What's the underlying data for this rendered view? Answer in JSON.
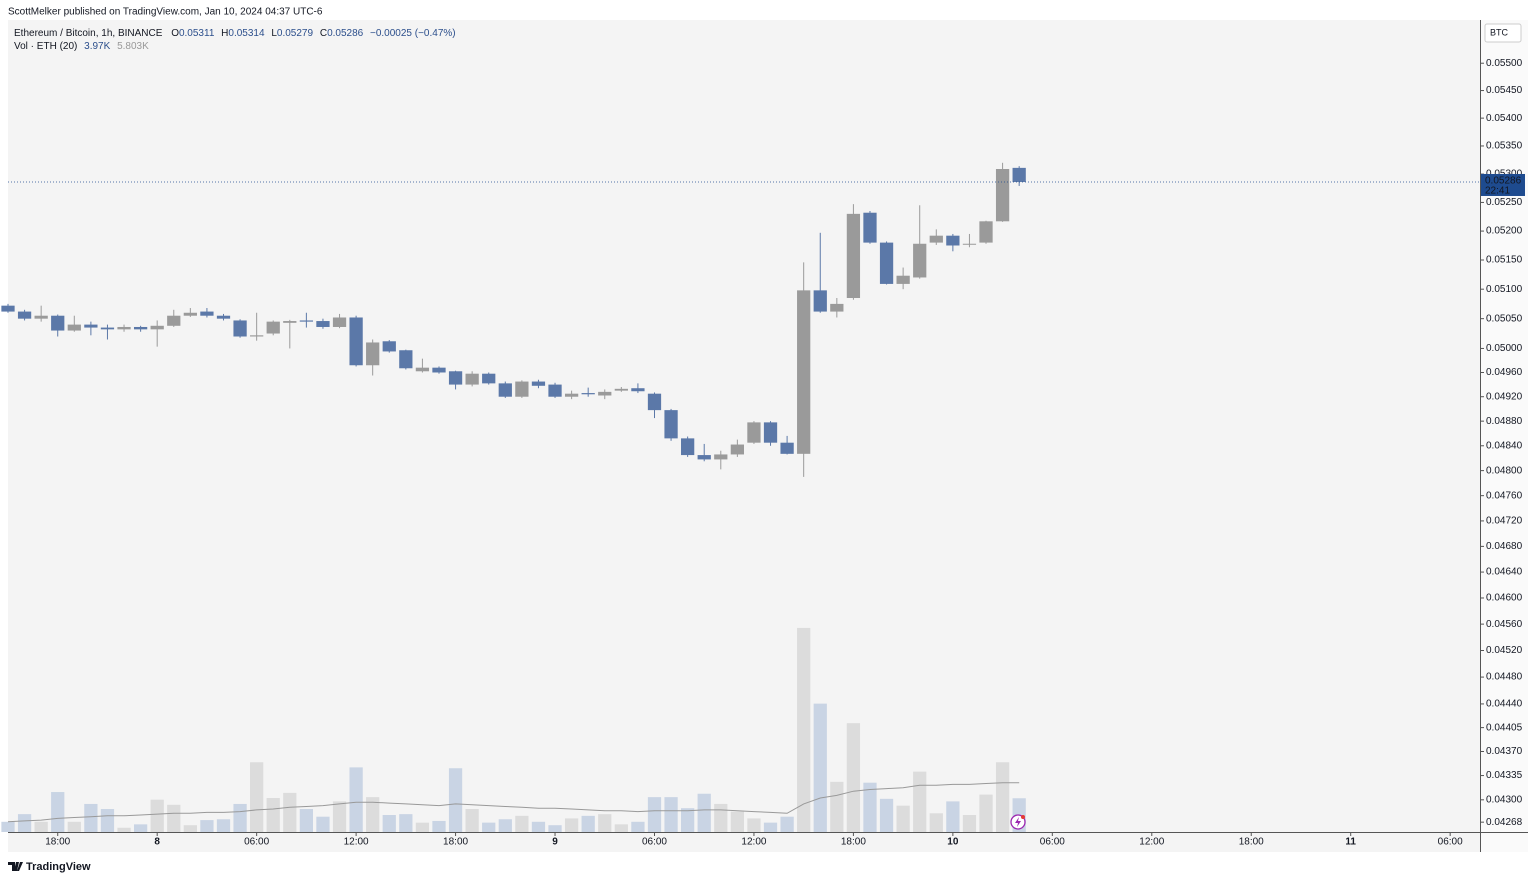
{
  "header": {
    "text": "ScottMelker published on TradingView.com, Jan 10, 2024 04:37 UTC-6"
  },
  "footer": {
    "brand": "TradingView"
  },
  "chart_data": {
    "type": "candlestick",
    "title": "Ethereum / Bitcoin, 1h, BINANCE",
    "currency": "BTC",
    "legend": {
      "o": "O",
      "h": "H",
      "l": "L",
      "c": "C",
      "change": "−0.00025 (−0.47%)"
    },
    "volume_legend": {
      "title": "Vol · ETH (20)",
      "value_label": "3.97K",
      "ma_label": "5.803K"
    },
    "countdown": "22:41",
    "up_color": "#9a9a9a",
    "down_color": "#5b78a8",
    "volume_up_color": "#dcdcdc",
    "volume_down_color": "#c9d4e4",
    "volume_ma_color": "#999999",
    "open": [
      0.05072,
      0.05062,
      0.0505,
      0.05055,
      0.0503,
      0.0504,
      0.05035,
      0.05032,
      0.05036,
      0.05032,
      0.05038,
      0.05055,
      0.05062,
      0.05055,
      0.05047,
      0.0502,
      0.05025,
      0.05043,
      0.05047,
      0.05046,
      0.05036,
      0.05052,
      0.04972,
      0.05012,
      0.04997,
      0.04962,
      0.04968,
      0.04962,
      0.0494,
      0.04958,
      0.04942,
      0.0492,
      0.04945,
      0.0494,
      0.0492,
      0.04926,
      0.04922,
      0.0493,
      0.04934,
      0.04925,
      0.04898,
      0.04852,
      0.04825,
      0.04818,
      0.04826,
      0.04845,
      0.04878,
      0.04845,
      0.04827,
      0.05098,
      0.05062,
      0.05085,
      0.05232,
      0.0518,
      0.05109,
      0.0512,
      0.0518,
      0.05192,
      0.05177,
      0.0518,
      0.05217,
      0.05311
    ],
    "high": [
      0.05075,
      0.05065,
      0.05072,
      0.05057,
      0.05055,
      0.05045,
      0.0504,
      0.0504,
      0.05038,
      0.05047,
      0.05065,
      0.05068,
      0.05068,
      0.05058,
      0.05049,
      0.0506,
      0.05047,
      0.05048,
      0.0506,
      0.0505,
      0.05058,
      0.05055,
      0.05015,
      0.05014,
      0.04998,
      0.04983,
      0.0497,
      0.04963,
      0.04962,
      0.0496,
      0.04945,
      0.04947,
      0.04948,
      0.04943,
      0.0493,
      0.04935,
      0.04932,
      0.04936,
      0.04942,
      0.04927,
      0.049,
      0.04855,
      0.04843,
      0.04832,
      0.0485,
      0.0488,
      0.0488,
      0.04856,
      0.05146,
      0.05197,
      0.05085,
      0.05247,
      0.05235,
      0.05182,
      0.05137,
      0.05245,
      0.05203,
      0.05195,
      0.05195,
      0.05218,
      0.0532,
      0.05314
    ],
    "low": [
      0.0506,
      0.05047,
      0.05045,
      0.0502,
      0.05028,
      0.05022,
      0.05015,
      0.05028,
      0.05028,
      0.05003,
      0.05036,
      0.05053,
      0.05052,
      0.05047,
      0.05018,
      0.05013,
      0.05022,
      0.05,
      0.05035,
      0.05033,
      0.05034,
      0.0497,
      0.04955,
      0.04993,
      0.04965,
      0.0496,
      0.04958,
      0.04932,
      0.04937,
      0.0494,
      0.04918,
      0.04918,
      0.04934,
      0.04918,
      0.04916,
      0.0492,
      0.04916,
      0.04928,
      0.04926,
      0.04885,
      0.04848,
      0.04822,
      0.04815,
      0.04802,
      0.04822,
      0.04843,
      0.0484,
      0.04826,
      0.0479,
      0.0506,
      0.05052,
      0.05082,
      0.05178,
      0.05108,
      0.051,
      0.05118,
      0.05176,
      0.05165,
      0.05172,
      0.05178,
      0.05216,
      0.05279
    ],
    "close": [
      0.05062,
      0.0505,
      0.05055,
      0.0503,
      0.0504,
      0.05035,
      0.05032,
      0.05036,
      0.05032,
      0.05038,
      0.05055,
      0.0506,
      0.05055,
      0.0505,
      0.0502,
      0.05022,
      0.05045,
      0.05046,
      0.05045,
      0.05036,
      0.05052,
      0.04972,
      0.0501,
      0.04995,
      0.04967,
      0.04968,
      0.0496,
      0.0494,
      0.04958,
      0.04942,
      0.0492,
      0.04945,
      0.04938,
      0.0492,
      0.04925,
      0.04924,
      0.04928,
      0.04933,
      0.04929,
      0.04898,
      0.04852,
      0.04825,
      0.04818,
      0.04826,
      0.04842,
      0.04878,
      0.04845,
      0.04827,
      0.05098,
      0.05062,
      0.05075,
      0.0523,
      0.0518,
      0.05109,
      0.05123,
      0.05178,
      0.05192,
      0.05175,
      0.05178,
      0.05217,
      0.05309,
      0.05286
    ],
    "volume": [
      1200,
      2100,
      1200,
      4700,
      1200,
      3300,
      2700,
      500,
      900,
      3800,
      3200,
      800,
      1400,
      1500,
      3300,
      8200,
      4000,
      4600,
      2700,
      1800,
      3600,
      7600,
      4100,
      2000,
      2100,
      1100,
      1300,
      7500,
      2700,
      1100,
      1500,
      1900,
      1200,
      800,
      1600,
      1900,
      2100,
      900,
      1200,
      4100,
      4100,
      2800,
      4500,
      3300,
      2400,
      1600,
      1100,
      1800,
      24000,
      15100,
      5900,
      12800,
      5800,
      3900,
      3100,
      7100,
      2200,
      3600,
      2000,
      4400,
      8200,
      3970
    ],
    "volume_ma": [
      1200,
      1300,
      1400,
      1600,
      1700,
      1800,
      1900,
      1900,
      2000,
      2100,
      2200,
      2200,
      2300,
      2300,
      2400,
      2600,
      2700,
      2900,
      3000,
      3100,
      3300,
      3500,
      3500,
      3400,
      3300,
      3200,
      3100,
      3300,
      3200,
      3100,
      3000,
      2900,
      2800,
      2800,
      2700,
      2600,
      2500,
      2500,
      2400,
      2500,
      2500,
      2500,
      2600,
      2600,
      2500,
      2400,
      2300,
      2200,
      3300,
      4000,
      4300,
      4800,
      5000,
      5100,
      5200,
      5500,
      5500,
      5600,
      5600,
      5700,
      5800,
      5803
    ],
    "volume_ylim": [
      0,
      95500
    ],
    "log_scale": true,
    "grid": false,
    "ylim": [
      0.04254,
      0.0558
    ],
    "yticks": [
      {
        "value": 0.055,
        "label": "0.05500"
      },
      {
        "value": 0.0545,
        "label": "0.05450"
      },
      {
        "value": 0.054,
        "label": "0.05400"
      },
      {
        "value": 0.0535,
        "label": "0.05350"
      },
      {
        "value": 0.053,
        "label": "0.05300"
      },
      {
        "value": 0.0525,
        "label": "0.05250"
      },
      {
        "value": 0.052,
        "label": "0.05200"
      },
      {
        "value": 0.0515,
        "label": "0.05150"
      },
      {
        "value": 0.051,
        "label": "0.05100"
      },
      {
        "value": 0.0505,
        "label": "0.05050"
      },
      {
        "value": 0.05,
        "label": "0.05000"
      },
      {
        "value": 0.0496,
        "label": "0.04960"
      },
      {
        "value": 0.0492,
        "label": "0.04920"
      },
      {
        "value": 0.0488,
        "label": "0.04880"
      },
      {
        "value": 0.0484,
        "label": "0.04840"
      },
      {
        "value": 0.048,
        "label": "0.04800"
      },
      {
        "value": 0.0476,
        "label": "0.04760"
      },
      {
        "value": 0.0472,
        "label": "0.04720"
      },
      {
        "value": 0.0468,
        "label": "0.04680"
      },
      {
        "value": 0.0464,
        "label": "0.04640"
      },
      {
        "value": 0.046,
        "label": "0.04600"
      },
      {
        "value": 0.0456,
        "label": "0.04560"
      },
      {
        "value": 0.0452,
        "label": "0.04520"
      },
      {
        "value": 0.0448,
        "label": "0.04480"
      },
      {
        "value": 0.0444,
        "label": "0.04440"
      },
      {
        "value": 0.04405,
        "label": "0.04405"
      },
      {
        "value": 0.0437,
        "label": "0.04370"
      },
      {
        "value": 0.04335,
        "label": "0.04335"
      },
      {
        "value": 0.043,
        "label": "0.04300"
      },
      {
        "value": 0.04268,
        "label": "0.04268"
      }
    ],
    "xlim": [
      0,
      88.8
    ],
    "xticks": [
      {
        "value": 3,
        "label": "18:00"
      },
      {
        "value": 9,
        "label": "8"
      },
      {
        "value": 15,
        "label": "06:00"
      },
      {
        "value": 21,
        "label": "12:00"
      },
      {
        "value": 27,
        "label": "18:00"
      },
      {
        "value": 33,
        "label": "9"
      },
      {
        "value": 39,
        "label": "06:00"
      },
      {
        "value": 45,
        "label": "12:00"
      },
      {
        "value": 51,
        "label": "18:00"
      },
      {
        "value": 57,
        "label": "10"
      },
      {
        "value": 63,
        "label": "06:00"
      },
      {
        "value": 69,
        "label": "12:00"
      },
      {
        "value": 75,
        "label": "18:00"
      },
      {
        "value": 81,
        "label": "11"
      },
      {
        "value": 87,
        "label": "06:00"
      }
    ]
  }
}
